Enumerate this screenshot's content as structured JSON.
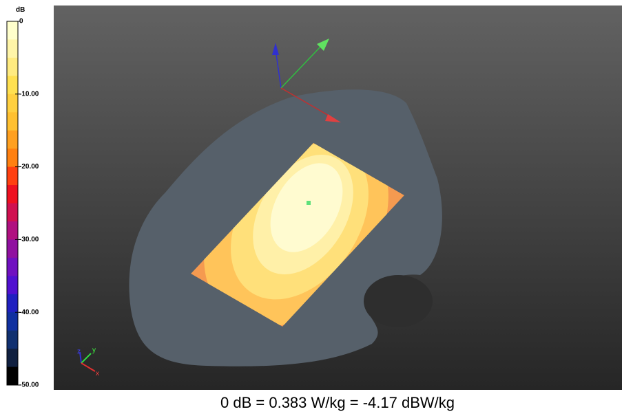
{
  "colorbar": {
    "unit": "dB",
    "ticks": [
      {
        "value": 0,
        "label": "0"
      },
      {
        "value": -10,
        "label": "-10.00"
      },
      {
        "value": -20,
        "label": "-20.00"
      },
      {
        "value": -30,
        "label": "-30.00"
      },
      {
        "value": -40,
        "label": "-40.00"
      },
      {
        "value": -50,
        "label": "-50.00"
      }
    ],
    "colors": [
      "#ffffcc",
      "#fff5a8",
      "#ffeb80",
      "#ffe050",
      "#ffd040",
      "#ffc030",
      "#ffa020",
      "#ff8010",
      "#ff4010",
      "#ee1020",
      "#d01050",
      "#b01080",
      "#9010a0",
      "#7010c0",
      "#5010d0",
      "#2020c0",
      "#1030a0",
      "#103070",
      "#102040",
      "#000000"
    ]
  },
  "axes_labels": {
    "z": "z",
    "y": "y",
    "x": "x"
  },
  "caption": "0 dB = 0.383 W/kg = -4.17 dBW/kg"
}
